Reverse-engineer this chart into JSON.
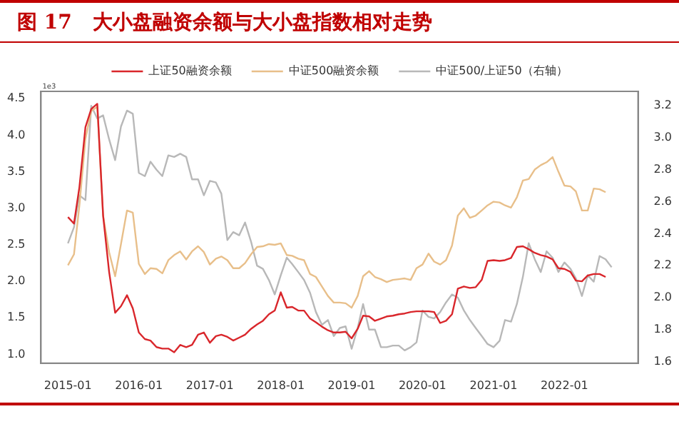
{
  "chart_data": {
    "type": "line",
    "title": "图 17   大小盘融资余额与大小盘指数相对走势",
    "annotations": [
      "1e3"
    ],
    "xlim": [
      "2014-08-15",
      "2023-01-15"
    ],
    "xticks": [
      "2015-01",
      "2016-01",
      "2017-01",
      "2018-01",
      "2019-01",
      "2020-01",
      "2021-01",
      "2022-01"
    ],
    "ylim": [
      0.88,
      4.6
    ],
    "yticks": [
      {
        "value": 1,
        "label": "1.0"
      },
      1.5,
      {
        "value": 2,
        "label": "2.0"
      },
      2.5,
      {
        "value": 3,
        "label": "3.0"
      },
      3.5,
      {
        "value": 4,
        "label": "4.0"
      },
      4.5
    ],
    "y2lim": [
      1.59,
      3.29
    ],
    "y2ticks": [
      1.6,
      1.8,
      {
        "value": 2,
        "label": "2.0"
      },
      2.2,
      2.4,
      2.6,
      2.8,
      {
        "value": 3,
        "label": "3.0"
      },
      3.2
    ],
    "legend": "top",
    "grid": false,
    "marker": "none",
    "line_style": "solid",
    "series": [
      {
        "name": "上证50融资余额",
        "color": "#d9262b",
        "x": [
          "2015-01",
          "2015-02",
          "2015-03",
          "2015-04",
          "2015-05",
          "2015-06",
          "2015-07",
          "2015-08",
          "2015-09",
          "2015-10",
          "2015-11",
          "2015-12",
          "2016-01",
          "2016-02",
          "2016-03",
          "2016-04",
          "2016-05",
          "2016-06",
          "2016-07",
          "2016-08",
          "2016-09",
          "2016-10",
          "2016-11",
          "2016-12",
          "2017-01",
          "2017-02",
          "2017-03",
          "2017-04",
          "2017-05",
          "2017-06",
          "2017-07",
          "2017-08",
          "2017-09",
          "2017-10",
          "2017-11",
          "2017-12",
          "2018-01",
          "2018-02",
          "2018-03",
          "2018-04",
          "2018-05",
          "2018-06",
          "2018-07",
          "2018-08",
          "2018-09",
          "2018-10",
          "2018-11",
          "2018-12",
          "2019-01",
          "2019-02",
          "2019-03",
          "2019-04",
          "2019-05",
          "2019-06",
          "2019-07",
          "2019-08",
          "2019-09",
          "2019-10",
          "2019-11",
          "2019-12",
          "2020-01",
          "2020-02",
          "2020-03",
          "2020-04",
          "2020-05",
          "2020-06",
          "2020-07",
          "2020-08",
          "2020-09",
          "2020-10",
          "2020-11",
          "2020-12",
          "2021-01",
          "2021-02",
          "2021-03",
          "2021-04",
          "2021-05",
          "2021-06",
          "2021-07",
          "2021-08",
          "2021-09",
          "2021-10",
          "2021-11",
          "2021-12",
          "2022-01",
          "2022-02",
          "2022-03",
          "2022-04",
          "2022-05",
          "2022-06",
          "2022-07",
          "2022-08"
        ],
        "values": [
          2.88,
          2.79,
          3.29,
          4.11,
          4.36,
          4.43,
          2.9,
          2.13,
          1.57,
          1.66,
          1.81,
          1.63,
          1.3,
          1.21,
          1.19,
          1.1,
          1.08,
          1.08,
          1.03,
          1.13,
          1.1,
          1.13,
          1.27,
          1.3,
          1.16,
          1.25,
          1.27,
          1.24,
          1.19,
          1.23,
          1.27,
          1.35,
          1.41,
          1.46,
          1.55,
          1.6,
          1.85,
          1.64,
          1.65,
          1.6,
          1.6,
          1.49,
          1.44,
          1.38,
          1.33,
          1.3,
          1.3,
          1.31,
          1.22,
          1.35,
          1.53,
          1.52,
          1.46,
          1.49,
          1.52,
          1.53,
          1.55,
          1.56,
          1.58,
          1.59,
          1.59,
          1.59,
          1.58,
          1.43,
          1.46,
          1.55,
          1.9,
          1.93,
          1.91,
          1.92,
          2.02,
          2.28,
          2.29,
          2.28,
          2.29,
          2.32,
          2.47,
          2.48,
          2.44,
          2.39,
          2.36,
          2.34,
          2.3,
          2.18,
          2.17,
          2.13,
          2.01,
          2,
          2.08,
          2.1,
          2.1,
          2.06
        ]
      },
      {
        "name": "中证500融资余额",
        "color": "#e8bf8a",
        "x": [
          "2015-01",
          "2015-02",
          "2015-03",
          "2015-04",
          "2015-05",
          "2015-06",
          "2015-07",
          "2015-08",
          "2015-09",
          "2015-10",
          "2015-11",
          "2015-12",
          "2016-01",
          "2016-02",
          "2016-03",
          "2016-04",
          "2016-05",
          "2016-06",
          "2016-07",
          "2016-08",
          "2016-09",
          "2016-10",
          "2016-11",
          "2016-12",
          "2017-01",
          "2017-02",
          "2017-03",
          "2017-04",
          "2017-05",
          "2017-06",
          "2017-07",
          "2017-08",
          "2017-09",
          "2017-10",
          "2017-11",
          "2017-12",
          "2018-01",
          "2018-02",
          "2018-03",
          "2018-04",
          "2018-05",
          "2018-06",
          "2018-07",
          "2018-08",
          "2018-09",
          "2018-10",
          "2018-11",
          "2018-12",
          "2019-01",
          "2019-02",
          "2019-03",
          "2019-04",
          "2019-05",
          "2019-06",
          "2019-07",
          "2019-08",
          "2019-09",
          "2019-10",
          "2019-11",
          "2019-12",
          "2020-01",
          "2020-02",
          "2020-03",
          "2020-04",
          "2020-05",
          "2020-06",
          "2020-07",
          "2020-08",
          "2020-09",
          "2020-10",
          "2020-11",
          "2020-12",
          "2021-01",
          "2021-02",
          "2021-03",
          "2021-04",
          "2021-05",
          "2021-06",
          "2021-07",
          "2021-08",
          "2021-09",
          "2021-10",
          "2021-11",
          "2021-12",
          "2022-01",
          "2022-02",
          "2022-03",
          "2022-04",
          "2022-05",
          "2022-06",
          "2022-07",
          "2022-08"
        ],
        "values": [
          2.22,
          2.37,
          3.04,
          3.95,
          4.33,
          4.39,
          2.9,
          2.4,
          2.07,
          2.51,
          2.97,
          2.94,
          2.24,
          2.1,
          2.18,
          2.17,
          2.11,
          2.29,
          2.36,
          2.41,
          2.3,
          2.41,
          2.48,
          2.4,
          2.23,
          2.31,
          2.34,
          2.29,
          2.18,
          2.18,
          2.25,
          2.37,
          2.47,
          2.48,
          2.51,
          2.5,
          2.52,
          2.36,
          2.35,
          2.31,
          2.29,
          2.1,
          2.06,
          1.93,
          1.8,
          1.71,
          1.71,
          1.7,
          1.64,
          1.8,
          2.07,
          2.14,
          2.06,
          2.03,
          1.99,
          2.02,
          2.03,
          2.04,
          2.02,
          2.18,
          2.23,
          2.38,
          2.27,
          2.23,
          2.29,
          2.49,
          2.9,
          3,
          2.87,
          2.9,
          2.97,
          3.04,
          3.09,
          3.08,
          3.04,
          3.01,
          3.15,
          3.38,
          3.4,
          3.53,
          3.59,
          3.63,
          3.7,
          3.5,
          3.31,
          3.3,
          3.23,
          2.97,
          2.97,
          3.27,
          3.26,
          3.22
        ]
      },
      {
        "name": "中证500/上证50（右轴）",
        "color": "#b8b8b8",
        "axis": "y2",
        "x": [
          "2015-01",
          "2015-02",
          "2015-03",
          "2015-04",
          "2015-05",
          "2015-06",
          "2015-07",
          "2015-08",
          "2015-09",
          "2015-10",
          "2015-11",
          "2015-12",
          "2016-01",
          "2016-02",
          "2016-03",
          "2016-04",
          "2016-05",
          "2016-06",
          "2016-07",
          "2016-08",
          "2016-09",
          "2016-10",
          "2016-11",
          "2016-12",
          "2017-01",
          "2017-02",
          "2017-03",
          "2017-04",
          "2017-05",
          "2017-06",
          "2017-07",
          "2017-08",
          "2017-09",
          "2017-10",
          "2017-11",
          "2017-12",
          "2018-01",
          "2018-02",
          "2018-03",
          "2018-04",
          "2018-05",
          "2018-06",
          "2018-07",
          "2018-08",
          "2018-09",
          "2018-10",
          "2018-11",
          "2018-12",
          "2019-01",
          "2019-02",
          "2019-03",
          "2019-04",
          "2019-05",
          "2019-06",
          "2019-07",
          "2019-08",
          "2019-09",
          "2019-10",
          "2019-11",
          "2019-12",
          "2020-01",
          "2020-02",
          "2020-03",
          "2020-04",
          "2020-05",
          "2020-06",
          "2020-07",
          "2020-08",
          "2020-09",
          "2020-10",
          "2020-11",
          "2020-12",
          "2021-01",
          "2021-02",
          "2021-03",
          "2021-04",
          "2021-05",
          "2021-06",
          "2021-07",
          "2021-08",
          "2021-09",
          "2021-10",
          "2021-11",
          "2021-12",
          "2022-01",
          "2022-02",
          "2022-03",
          "2022-04",
          "2022-05",
          "2022-06",
          "2022-07",
          "2022-08",
          "2022-09"
        ],
        "values": [
          2.34,
          2.44,
          2.64,
          2.61,
          3.2,
          3.12,
          3.14,
          2.99,
          2.86,
          3.07,
          3.17,
          3.15,
          2.78,
          2.76,
          2.85,
          2.8,
          2.76,
          2.89,
          2.88,
          2.9,
          2.88,
          2.74,
          2.74,
          2.64,
          2.73,
          2.72,
          2.65,
          2.36,
          2.41,
          2.39,
          2.47,
          2.35,
          2.2,
          2.18,
          2.11,
          2.02,
          2.14,
          2.25,
          2.21,
          2.16,
          2.11,
          2.03,
          1.91,
          1.83,
          1.86,
          1.76,
          1.81,
          1.82,
          1.68,
          1.81,
          1.96,
          1.8,
          1.8,
          1.69,
          1.69,
          1.7,
          1.7,
          1.67,
          1.69,
          1.72,
          1.92,
          1.88,
          1.87,
          1.91,
          1.97,
          2.02,
          2,
          1.92,
          1.86,
          1.81,
          1.76,
          1.71,
          1.69,
          1.73,
          1.86,
          1.85,
          1.96,
          2.13,
          2.34,
          2.24,
          2.16,
          2.29,
          2.25,
          2.16,
          2.22,
          2.18,
          2.12,
          2.01,
          2.14,
          2.1,
          2.26,
          2.24,
          2.19
        ]
      }
    ]
  }
}
